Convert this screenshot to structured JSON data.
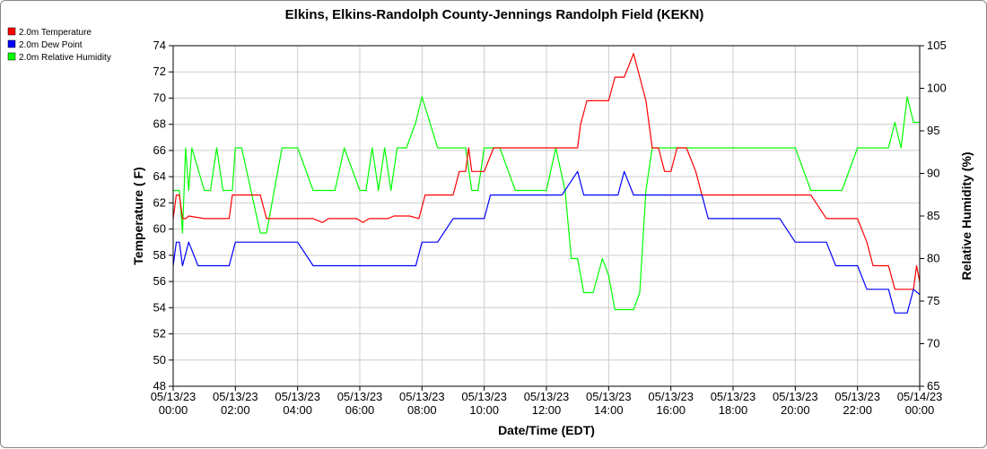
{
  "chart_data": {
    "type": "line",
    "title": "Elkins, Elkins-Randolph County-Jennings Randolph Field (KEKN)",
    "xlabel": "Date/Time (EDT)",
    "ylabel_left": "Temperature ( F)",
    "ylabel_right": "Relative Humidity (%)",
    "ylim_left": [
      48,
      74
    ],
    "yticks_left": [
      48,
      50,
      52,
      54,
      56,
      58,
      60,
      62,
      64,
      66,
      68,
      70,
      72,
      74
    ],
    "ylim_right": [
      65,
      105
    ],
    "yticks_right": [
      65,
      70,
      75,
      80,
      85,
      90,
      95,
      100,
      105
    ],
    "xlim_hours": [
      0,
      24
    ],
    "xticks": [
      {
        "date": "05/13/23",
        "time": "00:00"
      },
      {
        "date": "05/13/23",
        "time": "02:00"
      },
      {
        "date": "05/13/23",
        "time": "04:00"
      },
      {
        "date": "05/13/23",
        "time": "06:00"
      },
      {
        "date": "05/13/23",
        "time": "08:00"
      },
      {
        "date": "05/13/23",
        "time": "10:00"
      },
      {
        "date": "05/13/23",
        "time": "12:00"
      },
      {
        "date": "05/13/23",
        "time": "14:00"
      },
      {
        "date": "05/13/23",
        "time": "16:00"
      },
      {
        "date": "05/13/23",
        "time": "18:00"
      },
      {
        "date": "05/13/23",
        "time": "20:00"
      },
      {
        "date": "05/13/23",
        "time": "22:00"
      },
      {
        "date": "05/14/23",
        "time": "00:00"
      }
    ],
    "grid": true,
    "legend_position": "top-left",
    "series": [
      {
        "name": "2.0m Temperature",
        "color": "#ff0000",
        "axis": "left",
        "x": [
          0.0,
          0.1,
          0.2,
          0.3,
          0.4,
          0.5,
          1.0,
          1.5,
          1.8,
          1.9,
          2.0,
          2.1,
          2.2,
          2.5,
          2.8,
          3.0,
          3.5,
          4.0,
          4.5,
          4.8,
          5.0,
          5.2,
          5.5,
          5.9,
          6.1,
          6.3,
          6.5,
          6.7,
          6.9,
          7.1,
          7.4,
          7.6,
          7.9,
          8.1,
          8.5,
          9.0,
          9.2,
          9.4,
          9.5,
          9.6,
          9.8,
          10.0,
          10.3,
          10.5,
          10.7,
          11.0,
          11.5,
          12.0,
          12.3,
          12.5,
          12.8,
          13.0,
          13.1,
          13.3,
          13.5,
          14.0,
          14.2,
          14.5,
          14.8,
          15.0,
          15.2,
          15.4,
          15.6,
          15.8,
          16.0,
          16.2,
          16.5,
          16.8,
          17.0,
          17.2,
          17.5,
          18.0,
          18.3,
          18.5,
          19.0,
          19.5,
          20.0,
          20.5,
          21.0,
          21.5,
          21.8,
          22.0,
          22.3,
          22.5,
          23.0,
          23.2,
          23.4,
          23.6,
          23.8,
          23.9,
          24.0
        ],
        "y": [
          60.8,
          62.6,
          62.6,
          60.8,
          60.8,
          61.0,
          60.8,
          60.8,
          60.8,
          62.6,
          62.6,
          62.6,
          62.6,
          62.6,
          62.6,
          60.8,
          60.8,
          60.8,
          60.8,
          60.5,
          60.8,
          60.8,
          60.8,
          60.8,
          60.5,
          60.8,
          60.8,
          60.8,
          60.8,
          61.0,
          61.0,
          61.0,
          60.8,
          62.6,
          62.6,
          62.6,
          64.4,
          64.4,
          66.2,
          64.4,
          64.4,
          64.4,
          66.2,
          66.2,
          66.2,
          66.2,
          66.2,
          66.2,
          66.2,
          66.2,
          66.2,
          66.2,
          68.0,
          69.8,
          69.8,
          69.8,
          71.6,
          71.6,
          73.4,
          71.6,
          69.8,
          66.2,
          66.2,
          64.4,
          64.4,
          66.2,
          66.2,
          64.4,
          62.6,
          62.6,
          62.6,
          62.6,
          62.6,
          62.6,
          62.6,
          62.6,
          62.6,
          62.6,
          60.8,
          60.8,
          60.8,
          60.8,
          59.0,
          57.2,
          57.2,
          55.4,
          55.4,
          55.4,
          55.4,
          57.2,
          56.0
        ]
      },
      {
        "name": "2.0m Dew Point",
        "color": "#0000ff",
        "axis": "left",
        "x": [
          0.0,
          0.1,
          0.2,
          0.3,
          0.5,
          0.8,
          1.0,
          1.5,
          1.8,
          2.0,
          2.5,
          3.0,
          3.5,
          4.0,
          4.5,
          5.0,
          5.5,
          6.0,
          6.5,
          7.0,
          7.5,
          7.8,
          8.0,
          8.5,
          9.0,
          9.5,
          9.8,
          10.0,
          10.2,
          10.5,
          11.0,
          11.5,
          12.0,
          12.3,
          12.5,
          13.0,
          13.2,
          13.5,
          14.0,
          14.3,
          14.5,
          14.8,
          15.0,
          15.2,
          15.5,
          16.0,
          16.5,
          17.0,
          17.2,
          17.5,
          18.0,
          18.5,
          19.0,
          19.5,
          20.0,
          20.5,
          21.0,
          21.3,
          21.5,
          22.0,
          22.3,
          22.5,
          23.0,
          23.2,
          23.4,
          23.6,
          23.8,
          24.0
        ],
        "y": [
          57.2,
          59.0,
          59.0,
          57.2,
          59.0,
          57.2,
          57.2,
          57.2,
          57.2,
          59.0,
          59.0,
          59.0,
          59.0,
          59.0,
          57.2,
          57.2,
          57.2,
          57.2,
          57.2,
          57.2,
          57.2,
          57.2,
          59.0,
          59.0,
          60.8,
          60.8,
          60.8,
          60.8,
          62.6,
          62.6,
          62.6,
          62.6,
          62.6,
          62.6,
          62.6,
          64.4,
          62.6,
          62.6,
          62.6,
          62.6,
          64.4,
          62.6,
          62.6,
          62.6,
          62.6,
          62.6,
          62.6,
          62.6,
          60.8,
          60.8,
          60.8,
          60.8,
          60.8,
          60.8,
          59.0,
          59.0,
          59.0,
          57.2,
          57.2,
          57.2,
          55.4,
          55.4,
          55.4,
          53.6,
          53.6,
          53.6,
          55.4,
          55.0
        ]
      },
      {
        "name": "2.0m Relative Humidity",
        "color": "#00ff00",
        "axis": "right",
        "x": [
          0.0,
          0.2,
          0.3,
          0.4,
          0.5,
          0.6,
          1.0,
          1.2,
          1.4,
          1.6,
          1.8,
          1.9,
          2.0,
          2.2,
          2.5,
          2.8,
          3.0,
          3.5,
          3.8,
          4.0,
          4.5,
          4.8,
          5.0,
          5.2,
          5.5,
          6.0,
          6.2,
          6.4,
          6.6,
          6.8,
          7.0,
          7.2,
          7.5,
          7.8,
          8.0,
          8.5,
          9.0,
          9.2,
          9.4,
          9.6,
          9.8,
          10.0,
          10.3,
          10.5,
          11.0,
          11.5,
          12.0,
          12.3,
          12.6,
          12.8,
          13.0,
          13.2,
          13.5,
          13.8,
          14.0,
          14.2,
          14.4,
          14.6,
          14.8,
          15.0,
          15.2,
          15.4,
          15.6,
          15.8,
          16.0,
          16.5,
          17.0,
          17.5,
          18.0,
          18.5,
          19.0,
          19.5,
          20.0,
          20.5,
          21.0,
          21.5,
          22.0,
          22.5,
          23.0,
          23.2,
          23.4,
          23.6,
          23.8,
          24.0
        ],
        "y": [
          88,
          88,
          83,
          93,
          88,
          93,
          88,
          88,
          93,
          88,
          88,
          88,
          93,
          93,
          88,
          83,
          83,
          93,
          93,
          93,
          88,
          88,
          88,
          88,
          93,
          88,
          88,
          93,
          88,
          93,
          88,
          93,
          93,
          96,
          99,
          93,
          93,
          93,
          93,
          88,
          88,
          93,
          93,
          93,
          88,
          88,
          88,
          93,
          88,
          80,
          80,
          76,
          76,
          80,
          78,
          74,
          74,
          74,
          74,
          76,
          88,
          93,
          93,
          93,
          93,
          93,
          93,
          93,
          93,
          93,
          93,
          93,
          93,
          88,
          88,
          88,
          93,
          93,
          93,
          96,
          93,
          99,
          96,
          96
        ]
      }
    ]
  }
}
